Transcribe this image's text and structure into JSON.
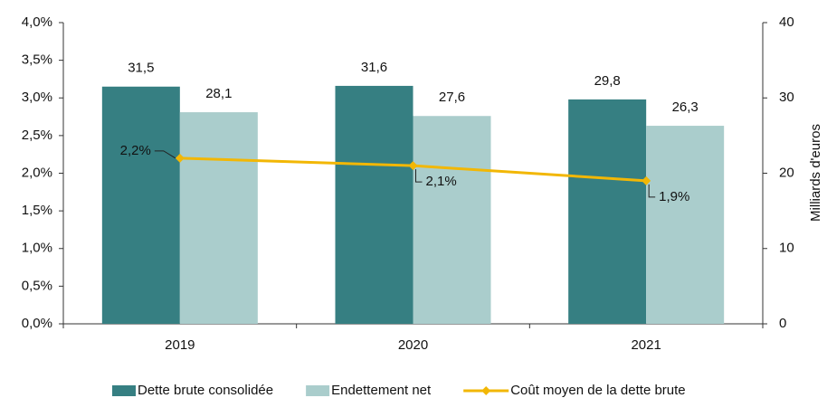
{
  "chart_data": {
    "type": "bar",
    "categories": [
      "2019",
      "2020",
      "2021"
    ],
    "series": [
      {
        "name": "Dette brute consolidée",
        "color": "#367f82",
        "axis": "y2",
        "values": [
          31.5,
          31.6,
          29.8
        ],
        "value_labels": [
          "31,5",
          "31,6",
          "29,8"
        ]
      },
      {
        "name": "Endettement net",
        "color": "#aacdcc",
        "axis": "y2",
        "values": [
          28.1,
          27.6,
          26.3
        ],
        "value_labels": [
          "28,1",
          "27,6",
          "26,3"
        ]
      },
      {
        "name": "Coût moyen de la dette brute",
        "color": "#f2b705",
        "type": "line",
        "values": [
          2.2,
          2.1,
          1.9
        ],
        "value_labels": [
          "2,2%",
          "2,1%",
          "1,9%"
        ]
      }
    ],
    "ylim": [
      0,
      4
    ],
    "yticks": [
      {
        "value": 0,
        "label": "0,0%"
      },
      {
        "value": 0.5,
        "label": "0,5%"
      },
      {
        "value": 1,
        "label": "1,0%"
      },
      {
        "value": 1.5,
        "label": "1,5%"
      },
      {
        "value": 2,
        "label": "2,0%"
      },
      {
        "value": 2.5,
        "label": "2,5%"
      },
      {
        "value": 3,
        "label": "3,0%"
      },
      {
        "value": 3.5,
        "label": "3,5%"
      },
      {
        "value": 4,
        "label": "4,0%"
      }
    ],
    "y2lim": [
      0,
      40
    ],
    "y2ticks": [
      0,
      10,
      20,
      30,
      40
    ],
    "y2label": "Milliards d'euros",
    "grid": false,
    "legend": "bottom"
  }
}
